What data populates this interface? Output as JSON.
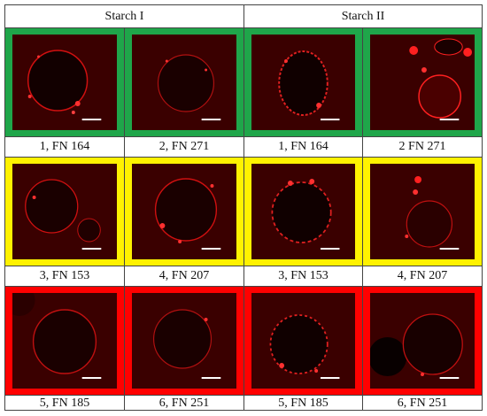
{
  "headers": [
    "Starch I",
    "Starch II"
  ],
  "rows": [
    {
      "color": "green",
      "color_hex": "#1fa64a",
      "labels": [
        "1, FN 164",
        "2, FN 271",
        "1, FN 164",
        "2 FN 271"
      ]
    },
    {
      "color": "yellow",
      "color_hex": "#fff200",
      "labels": [
        "3, FN 153",
        "4, FN 207",
        "3, FN 153",
        "4, FN 207"
      ]
    },
    {
      "color": "red",
      "color_hex": "#ff0000",
      "labels": [
        "5, FN 185",
        "6, FN 251",
        "5, FN 185",
        "6, FN 251"
      ]
    }
  ],
  "image_type": "fluorescence micrographs of starch granules with scale bars"
}
